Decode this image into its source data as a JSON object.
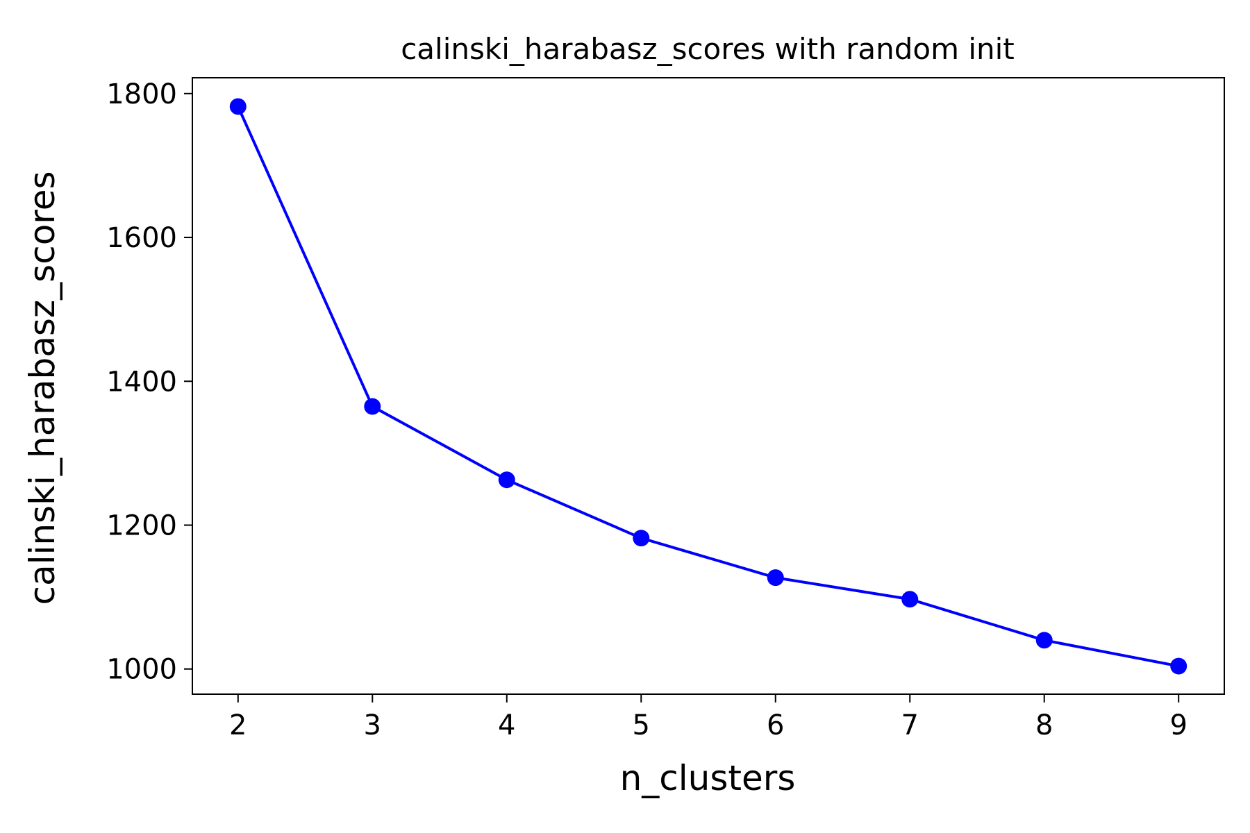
{
  "chart_data": {
    "type": "line",
    "title": "calinski_harabasz_scores with random init",
    "xlabel": "n_clusters",
    "ylabel": "calinski_harabasz_scores",
    "x": [
      2,
      3,
      4,
      5,
      6,
      7,
      8,
      9
    ],
    "series": [
      {
        "values": [
          1782,
          1365,
          1263,
          1182,
          1127,
          1097,
          1040,
          1004
        ],
        "color": "#0000ff",
        "marker": "circle"
      }
    ],
    "xticks": [
      "2",
      "3",
      "4",
      "5",
      "6",
      "7",
      "8",
      "9"
    ],
    "yticks": [
      "1000",
      "1200",
      "1400",
      "1600",
      "1800"
    ],
    "xlim": [
      1.66,
      9.34
    ],
    "ylim": [
      965,
      1822
    ],
    "grid": false,
    "legend": "none"
  }
}
